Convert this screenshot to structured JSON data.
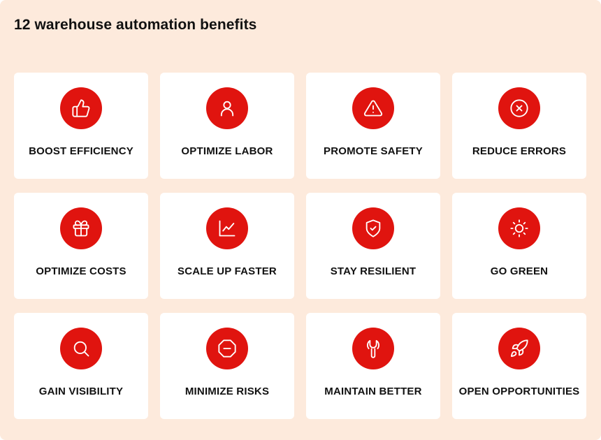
{
  "title": "12 warehouse automation benefits",
  "accent_color": "#e0140f",
  "background_color": "#fdeadc",
  "cards": [
    {
      "label": "BOOST EFFICIENCY",
      "icon": "thumbs-up-icon"
    },
    {
      "label": "OPTIMIZE LABOR",
      "icon": "user-icon"
    },
    {
      "label": "PROMOTE SAFETY",
      "icon": "warning-triangle-icon"
    },
    {
      "label": "REDUCE ERRORS",
      "icon": "x-circle-icon"
    },
    {
      "label": "OPTIMIZE COSTS",
      "icon": "gift-icon"
    },
    {
      "label": "SCALE UP FASTER",
      "icon": "line-chart-icon"
    },
    {
      "label": "STAY RESILIENT",
      "icon": "shield-check-icon"
    },
    {
      "label": "GO GREEN",
      "icon": "sun-icon"
    },
    {
      "label": "GAIN VISIBILITY",
      "icon": "search-icon"
    },
    {
      "label": "MINIMIZE RISKS",
      "icon": "stop-octagon-icon"
    },
    {
      "label": "MAINTAIN BETTER",
      "icon": "wrench-icon"
    },
    {
      "label": "OPEN OPPORTUNITIES",
      "icon": "rocket-icon"
    }
  ]
}
